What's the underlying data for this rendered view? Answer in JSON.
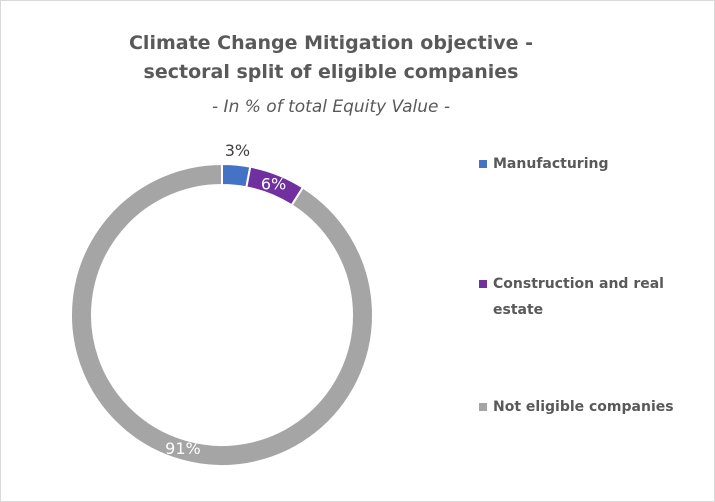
{
  "chart_data": {
    "type": "donut",
    "title": "Climate Change Mitigation objective - sectoral split of eligible companies",
    "subtitle": "- In % of total Equity Value -",
    "categories": [
      "Manufacturing",
      "Construction and real estate",
      "Not eligible companies"
    ],
    "values": [
      3,
      6,
      91
    ],
    "value_labels": [
      "3%",
      "6%",
      "91%"
    ],
    "colors": [
      "#4472c4",
      "#7030a0",
      "#a5a5a5"
    ],
    "legend": "right"
  }
}
